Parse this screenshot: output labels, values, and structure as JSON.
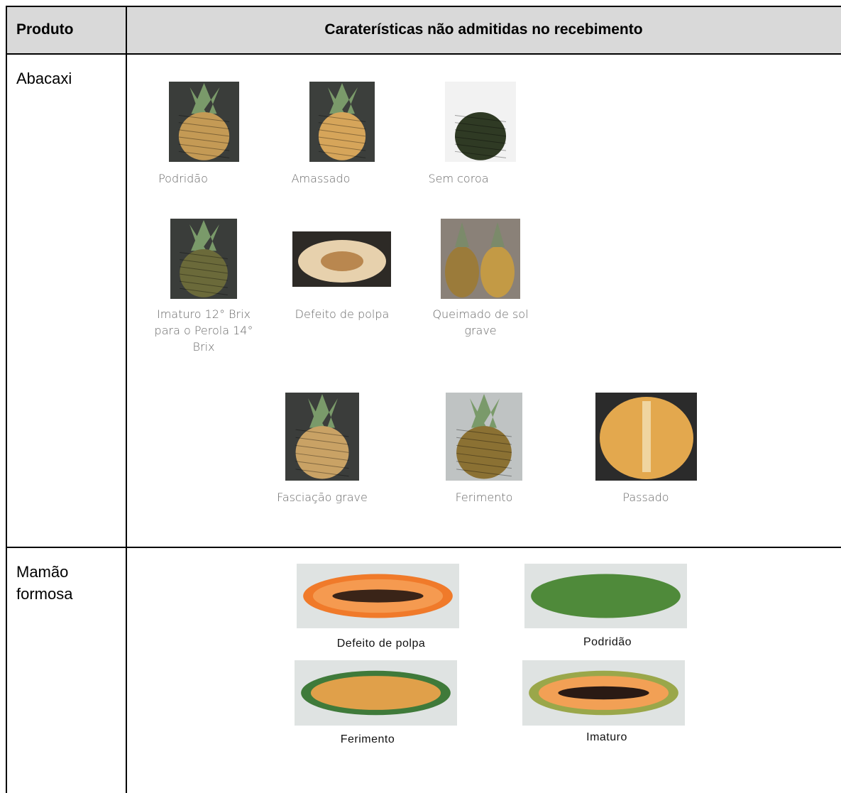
{
  "table": {
    "header": [
      "Produto",
      "Caraterísticas não admitidas no recebimento"
    ],
    "rows": [
      {
        "product": "Abacaxi",
        "items": [
          "Podridão",
          "Amassado",
          "Sem coroa",
          "Imaturo 12° Brix para o Perola 14° Brix",
          "Defeito de polpa",
          "Queimado de sol grave",
          "Fasciação grave",
          "Ferimento",
          "Passado"
        ]
      },
      {
        "product": "Mamão formosa",
        "items": [
          "Defeito de polpa",
          "Podridão",
          "Ferimento",
          "Imaturo"
        ]
      }
    ]
  }
}
